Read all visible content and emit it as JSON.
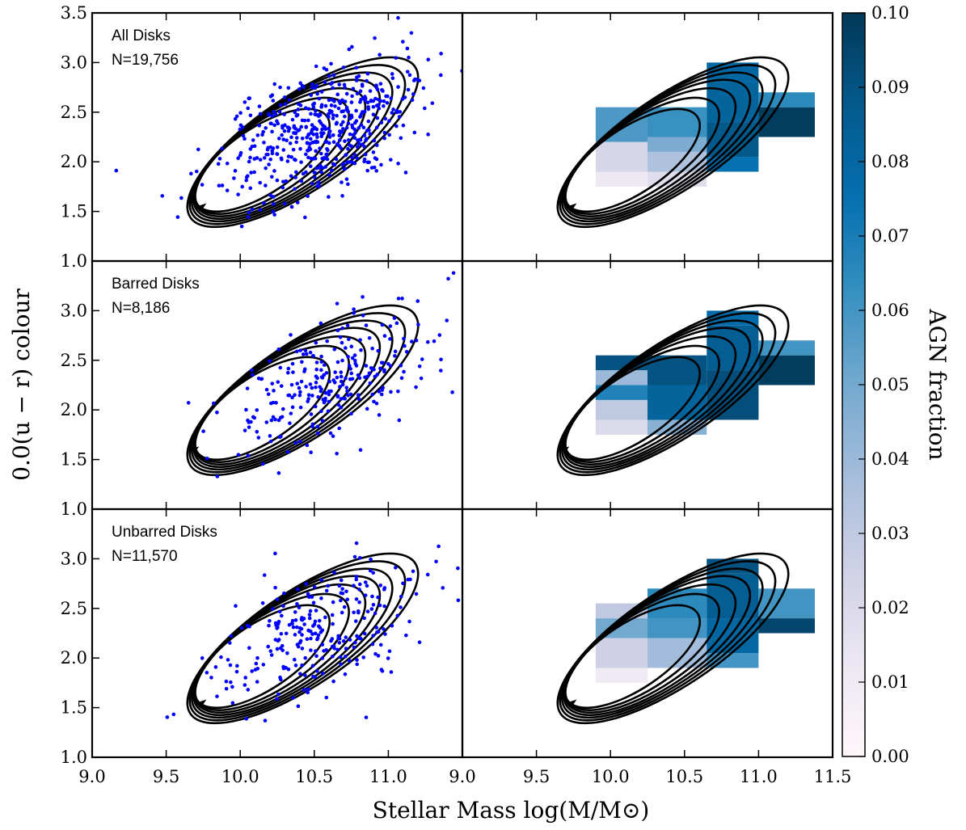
{
  "chart_data": {
    "type": "scatter",
    "xlabel": "Stellar Mass log(M/M⊙)",
    "ylabel": "0.0(u − r) colour",
    "xlim": [
      9.0,
      11.5
    ],
    "ylim": [
      1.0,
      3.5
    ],
    "x_ticks_left": [
      "9.0",
      "9.5",
      "10.0",
      "10.5",
      "11.0"
    ],
    "x_ticks_right": [
      "9.0",
      "9.5",
      "10.0",
      "10.5",
      "11.0",
      "11.5"
    ],
    "y_ticks_top": [
      "1.0",
      "1.5",
      "2.0",
      "2.5",
      "3.0",
      "3.5"
    ],
    "y_ticks_lower": [
      "1.0",
      "1.5",
      "2.0",
      "2.5",
      "3.0"
    ],
    "colorbar": {
      "label": "AGN fraction",
      "range": [
        0.0,
        0.1
      ],
      "ticks": [
        "0.00",
        "0.01",
        "0.02",
        "0.03",
        "0.04",
        "0.05",
        "0.06",
        "0.07",
        "0.08",
        "0.09",
        "0.10"
      ],
      "colors": [
        "#fff7fb",
        "#ece7f2",
        "#d0d1e6",
        "#a6bddb",
        "#74a9cf",
        "#3690c0",
        "#0570b0",
        "#045a8d",
        "#023858"
      ]
    },
    "rows": [
      {
        "title": "All Disks",
        "count": "N=19,756",
        "scatter_center": [
          10.55,
          2.3
        ],
        "scatter_n": 520,
        "contour_peak": [
          9.75,
          1.55
        ],
        "agn_bins": [
          {
            "x0": 9.9,
            "x1": 10.25,
            "y0": 1.75,
            "y1": 1.9,
            "f": 0.012
          },
          {
            "x0": 9.9,
            "x1": 10.25,
            "y0": 1.9,
            "y1": 2.2,
            "f": 0.022
          },
          {
            "x0": 9.9,
            "x1": 10.25,
            "y0": 2.2,
            "y1": 2.55,
            "f": 0.058
          },
          {
            "x0": 10.25,
            "x1": 10.65,
            "y0": 1.75,
            "y1": 1.9,
            "f": 0.018
          },
          {
            "x0": 10.25,
            "x1": 10.65,
            "y0": 1.9,
            "y1": 2.1,
            "f": 0.035
          },
          {
            "x0": 10.25,
            "x1": 10.65,
            "y0": 2.1,
            "y1": 2.25,
            "f": 0.048
          },
          {
            "x0": 10.25,
            "x1": 10.65,
            "y0": 2.25,
            "y1": 2.55,
            "f": 0.062
          },
          {
            "x0": 10.65,
            "x1": 11.0,
            "y0": 1.9,
            "y1": 2.05,
            "f": 0.075
          },
          {
            "x0": 10.65,
            "x1": 11.0,
            "y0": 2.05,
            "y1": 2.4,
            "f": 0.088
          },
          {
            "x0": 10.65,
            "x1": 11.0,
            "y0": 2.4,
            "y1": 2.8,
            "f": 0.082
          },
          {
            "x0": 10.65,
            "x1": 11.0,
            "y0": 2.8,
            "y1": 3.0,
            "f": 0.08
          },
          {
            "x0": 11.0,
            "x1": 11.38,
            "y0": 2.25,
            "y1": 2.55,
            "f": 0.098
          },
          {
            "x0": 11.0,
            "x1": 11.38,
            "y0": 2.55,
            "y1": 2.7,
            "f": 0.065
          }
        ]
      },
      {
        "title": "Barred Disks",
        "count": "N=8,186",
        "scatter_center": [
          10.6,
          2.3
        ],
        "scatter_n": 260,
        "contour_peak": [
          9.7,
          1.6
        ],
        "agn_bins": [
          {
            "x0": 9.9,
            "x1": 10.25,
            "y0": 1.75,
            "y1": 1.9,
            "f": 0.02
          },
          {
            "x0": 9.9,
            "x1": 10.25,
            "y0": 1.9,
            "y1": 2.1,
            "f": 0.03
          },
          {
            "x0": 9.9,
            "x1": 10.25,
            "y0": 2.1,
            "y1": 2.25,
            "f": 0.068
          },
          {
            "x0": 9.9,
            "x1": 10.25,
            "y0": 2.25,
            "y1": 2.4,
            "f": 0.04
          },
          {
            "x0": 9.9,
            "x1": 10.25,
            "y0": 2.4,
            "y1": 2.55,
            "f": 0.09
          },
          {
            "x0": 10.25,
            "x1": 10.65,
            "y0": 1.75,
            "y1": 1.9,
            "f": 0.045
          },
          {
            "x0": 10.25,
            "x1": 10.65,
            "y0": 1.9,
            "y1": 2.25,
            "f": 0.082
          },
          {
            "x0": 10.25,
            "x1": 10.65,
            "y0": 2.25,
            "y1": 2.55,
            "f": 0.09
          },
          {
            "x0": 10.65,
            "x1": 11.0,
            "y0": 1.9,
            "y1": 2.4,
            "f": 0.092
          },
          {
            "x0": 10.65,
            "x1": 11.0,
            "y0": 2.4,
            "y1": 2.85,
            "f": 0.085
          },
          {
            "x0": 10.65,
            "x1": 11.0,
            "y0": 2.85,
            "y1": 3.0,
            "f": 0.078
          },
          {
            "x0": 11.0,
            "x1": 11.38,
            "y0": 2.25,
            "y1": 2.55,
            "f": 0.098
          },
          {
            "x0": 11.0,
            "x1": 11.38,
            "y0": 2.55,
            "y1": 2.7,
            "f": 0.06
          }
        ]
      },
      {
        "title": "Unbarred Disks",
        "count": "N=11,570",
        "scatter_center": [
          10.55,
          2.25
        ],
        "scatter_n": 270,
        "contour_peak": [
          9.75,
          1.55
        ],
        "agn_bins": [
          {
            "x0": 9.9,
            "x1": 10.25,
            "y0": 1.75,
            "y1": 1.9,
            "f": 0.01
          },
          {
            "x0": 9.9,
            "x1": 10.25,
            "y0": 1.9,
            "y1": 2.2,
            "f": 0.025
          },
          {
            "x0": 9.9,
            "x1": 10.25,
            "y0": 2.2,
            "y1": 2.4,
            "f": 0.05
          },
          {
            "x0": 9.9,
            "x1": 10.25,
            "y0": 2.4,
            "y1": 2.55,
            "f": 0.03
          },
          {
            "x0": 10.25,
            "x1": 10.65,
            "y0": 1.9,
            "y1": 2.2,
            "f": 0.038
          },
          {
            "x0": 10.25,
            "x1": 10.65,
            "y0": 2.2,
            "y1": 2.4,
            "f": 0.06
          },
          {
            "x0": 10.25,
            "x1": 10.65,
            "y0": 2.4,
            "y1": 2.7,
            "f": 0.065
          },
          {
            "x0": 10.65,
            "x1": 11.0,
            "y0": 1.9,
            "y1": 2.05,
            "f": 0.06
          },
          {
            "x0": 10.65,
            "x1": 11.0,
            "y0": 2.05,
            "y1": 2.4,
            "f": 0.08
          },
          {
            "x0": 10.65,
            "x1": 11.0,
            "y0": 2.4,
            "y1": 2.85,
            "f": 0.085
          },
          {
            "x0": 10.65,
            "x1": 11.0,
            "y0": 2.85,
            "y1": 3.0,
            "f": 0.09
          },
          {
            "x0": 11.0,
            "x1": 11.38,
            "y0": 2.25,
            "y1": 2.4,
            "f": 0.095
          },
          {
            "x0": 11.0,
            "x1": 11.38,
            "y0": 2.4,
            "y1": 2.7,
            "f": 0.06
          }
        ]
      }
    ]
  }
}
